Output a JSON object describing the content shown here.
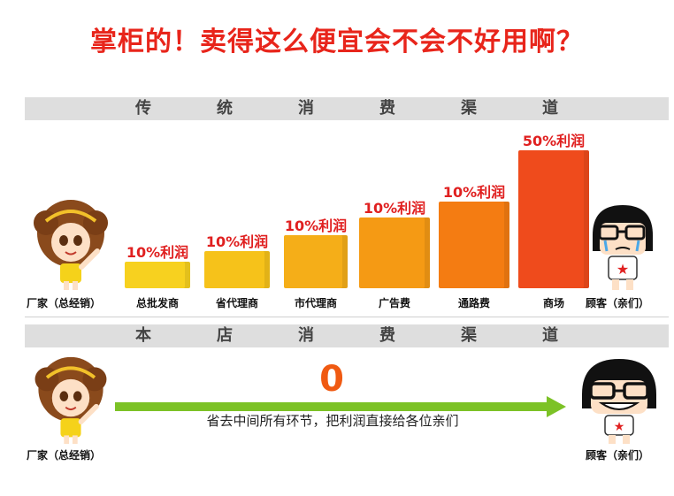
{
  "headline": "掌柜的！卖得这么便宜会不会不好用啊？",
  "traditional": {
    "band_chars": [
      "传",
      "统",
      "消",
      "费",
      "渠",
      "道"
    ],
    "chain": [
      {
        "label": "总批发商",
        "profit": "10%利润",
        "color": "#f7d11f"
      },
      {
        "label": "省代理商",
        "profit": "10%利润",
        "color": "#f6c21a"
      },
      {
        "label": "市代理商",
        "profit": "10%利润",
        "color": "#f5ae18"
      },
      {
        "label": "广告费",
        "profit": "10%利润",
        "color": "#f59a14"
      },
      {
        "label": "通路费",
        "profit": "10%利润",
        "color": "#f47c12"
      },
      {
        "label": "商场",
        "profit": "50%利润",
        "color": "#ef4b1c"
      }
    ],
    "maker_label": "厂家（总经销）",
    "customer_label": "顾客（亲们）"
  },
  "our_store": {
    "band_chars": [
      "本",
      "店",
      "消",
      "费",
      "渠",
      "道"
    ],
    "middle_profit": "0",
    "arrow_caption": "省去中间所有环节，把利润直接给各位亲们",
    "arrow_color": "#7cc226",
    "maker_label": "厂家（总经销）",
    "customer_label": "顾客（亲们）"
  }
}
